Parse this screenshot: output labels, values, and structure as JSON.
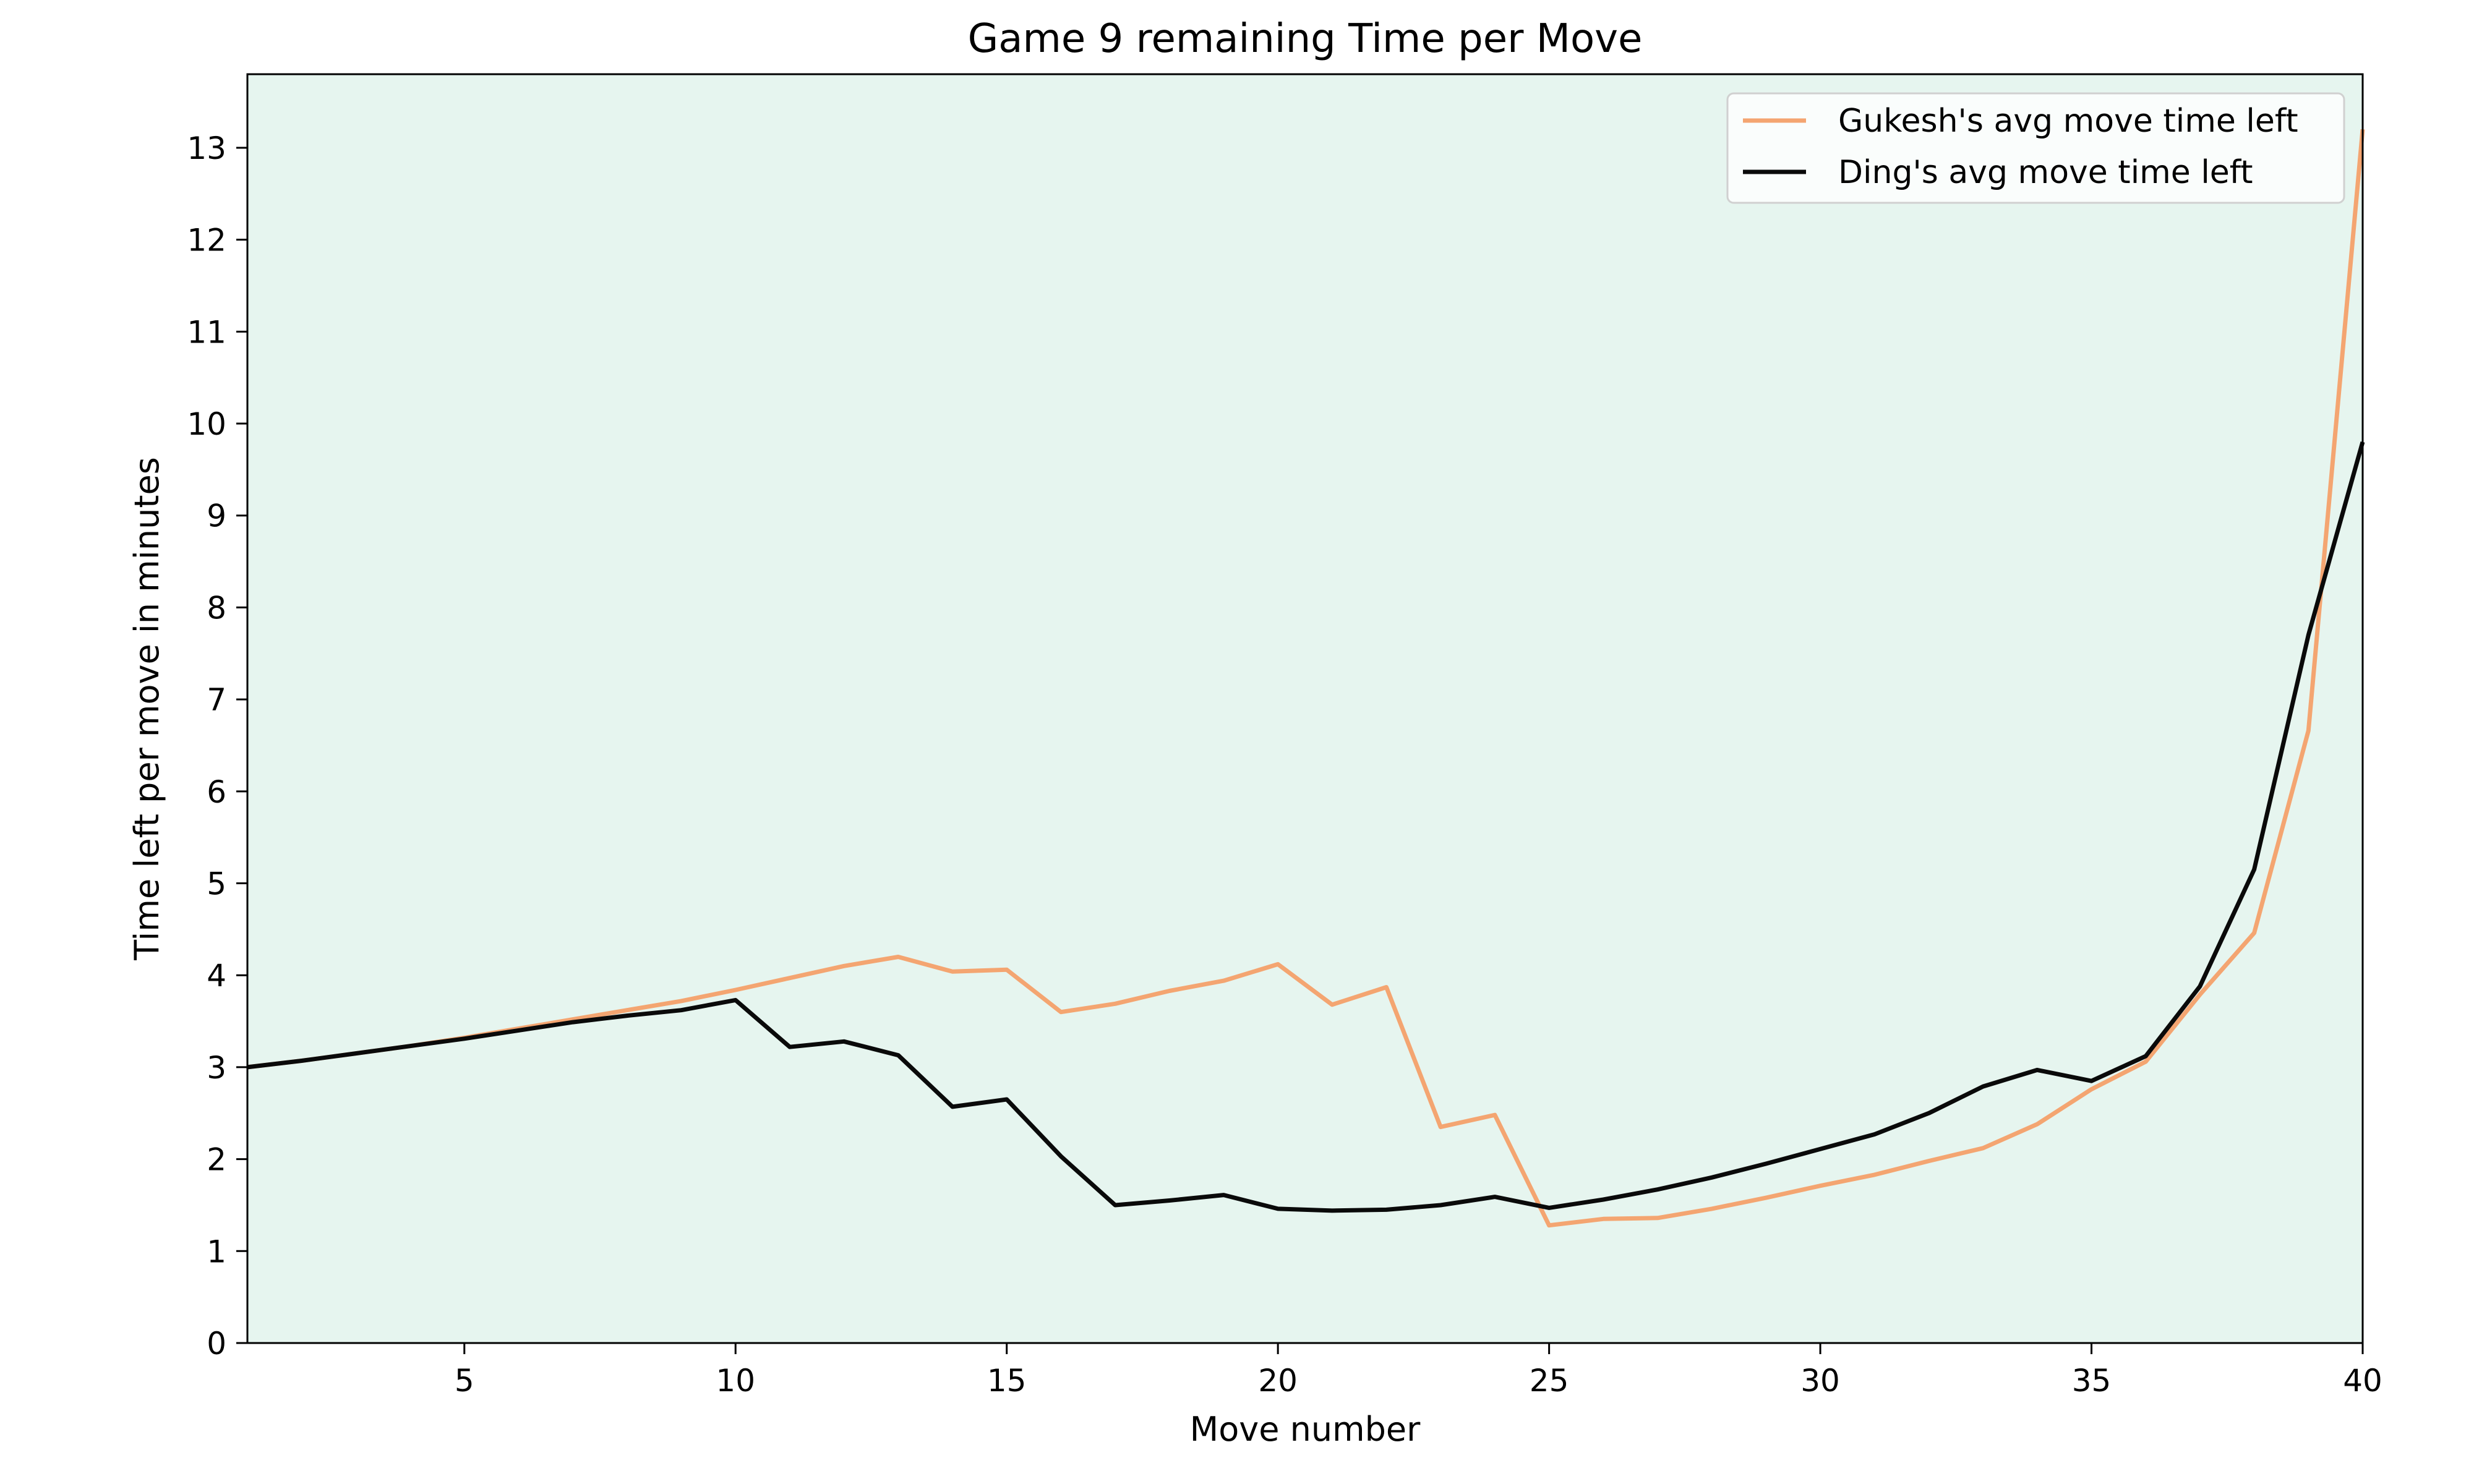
{
  "chart_data": {
    "type": "line",
    "title": "Game 9 remaining Time per Move",
    "xlabel": "Move number",
    "ylabel": "Time left per move in minutes",
    "xlim": [
      1,
      40
    ],
    "ylim": [
      0,
      13.8
    ],
    "xticks": [
      5,
      10,
      15,
      20,
      25,
      30,
      35,
      40
    ],
    "yticks": [
      0,
      1,
      2,
      3,
      4,
      5,
      6,
      7,
      8,
      9,
      10,
      11,
      12,
      13
    ],
    "grid": false,
    "legend_position": "top-right",
    "plot_background": "#e6f5ef",
    "x": [
      1,
      2,
      3,
      4,
      5,
      6,
      7,
      8,
      9,
      10,
      11,
      12,
      13,
      14,
      15,
      16,
      17,
      18,
      19,
      20,
      21,
      22,
      23,
      24,
      25,
      26,
      27,
      28,
      29,
      30,
      31,
      32,
      33,
      34,
      35,
      36,
      37,
      38,
      39,
      40
    ],
    "series": [
      {
        "name": "Gukesh's avg move time left",
        "color": "#f4a571",
        "values": [
          3.0,
          3.07,
          3.15,
          3.23,
          3.32,
          3.42,
          3.52,
          3.62,
          3.72,
          3.84,
          3.97,
          4.1,
          4.2,
          4.04,
          4.06,
          3.6,
          3.69,
          3.83,
          3.94,
          4.12,
          3.68,
          3.87,
          2.35,
          2.48,
          1.28,
          1.35,
          1.36,
          1.46,
          1.58,
          1.71,
          1.83,
          1.98,
          2.12,
          2.38,
          2.76,
          3.06,
          3.79,
          4.46,
          6.66,
          13.2
        ]
      },
      {
        "name": "Ding's avg move time left",
        "color": "#0a0a0a",
        "values": [
          3.0,
          3.07,
          3.15,
          3.23,
          3.31,
          3.4,
          3.49,
          3.56,
          3.62,
          3.73,
          3.22,
          3.28,
          3.13,
          2.57,
          2.65,
          2.03,
          1.5,
          1.55,
          1.61,
          1.46,
          1.44,
          1.45,
          1.5,
          1.59,
          1.47,
          1.56,
          1.67,
          1.8,
          1.95,
          2.11,
          2.27,
          2.5,
          2.79,
          2.97,
          2.85,
          3.12,
          3.88,
          5.15,
          7.7,
          9.8
        ]
      }
    ]
  }
}
